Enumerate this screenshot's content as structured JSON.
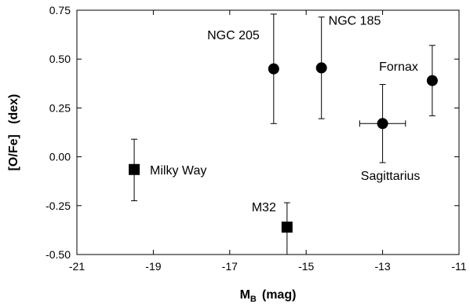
{
  "chart_data": {
    "type": "scatter",
    "title": "",
    "xlabel": "M",
    "xlabel_sub": "B",
    "xlabel_unit": "(mag)",
    "ylabel": "[O/Fe]   (dex)",
    "xlim": [
      -21,
      -11
    ],
    "ylim": [
      -0.5,
      0.75
    ],
    "xticks": [
      -21,
      -19,
      -17,
      -15,
      -13,
      -11
    ],
    "yticks": [
      -0.5,
      -0.25,
      0,
      0.25,
      0.5,
      0.75
    ],
    "xtick_labels": [
      "-21",
      "-19",
      "-17",
      "-15",
      "-13",
      "-11"
    ],
    "ytick_labels": [
      "-0.50",
      "-0.25",
      "0.00",
      "0.25",
      "0.50",
      "0.75"
    ],
    "grid": false,
    "legend": false,
    "marker_color": "#000000",
    "points": [
      {
        "label": "Milky Way",
        "x": -19.5,
        "y": -0.065,
        "y_low": -0.225,
        "y_high": 0.09,
        "x_low": -19.5,
        "x_high": -19.5,
        "marker": "square",
        "label_pos": "right"
      },
      {
        "label": "M32",
        "x": -15.5,
        "y": -0.36,
        "y_low": -0.5,
        "y_high": -0.235,
        "x_low": -15.5,
        "x_high": -15.5,
        "marker": "square",
        "label_pos": "left"
      },
      {
        "label": "NGC 205",
        "x": -15.85,
        "y": 0.45,
        "y_low": 0.17,
        "y_high": 0.73,
        "x_low": -15.85,
        "x_high": -15.85,
        "marker": "circle",
        "label_pos": "top-left"
      },
      {
        "label": "NGC 185",
        "x": -14.6,
        "y": 0.455,
        "y_low": 0.195,
        "y_high": 0.715,
        "x_low": -14.6,
        "x_high": -14.6,
        "marker": "circle",
        "label_pos": "top-right"
      },
      {
        "label": "Sagittarius",
        "x": -13.0,
        "y": 0.17,
        "y_low": -0.03,
        "y_high": 0.37,
        "x_low": -13.6,
        "x_high": -12.4,
        "marker": "circle",
        "label_pos": "bottom"
      },
      {
        "label": "Fornax",
        "x": -11.7,
        "y": 0.39,
        "y_low": 0.21,
        "y_high": 0.57,
        "x_low": -11.7,
        "x_high": -11.7,
        "marker": "circle",
        "label_pos": "top-left"
      }
    ]
  }
}
